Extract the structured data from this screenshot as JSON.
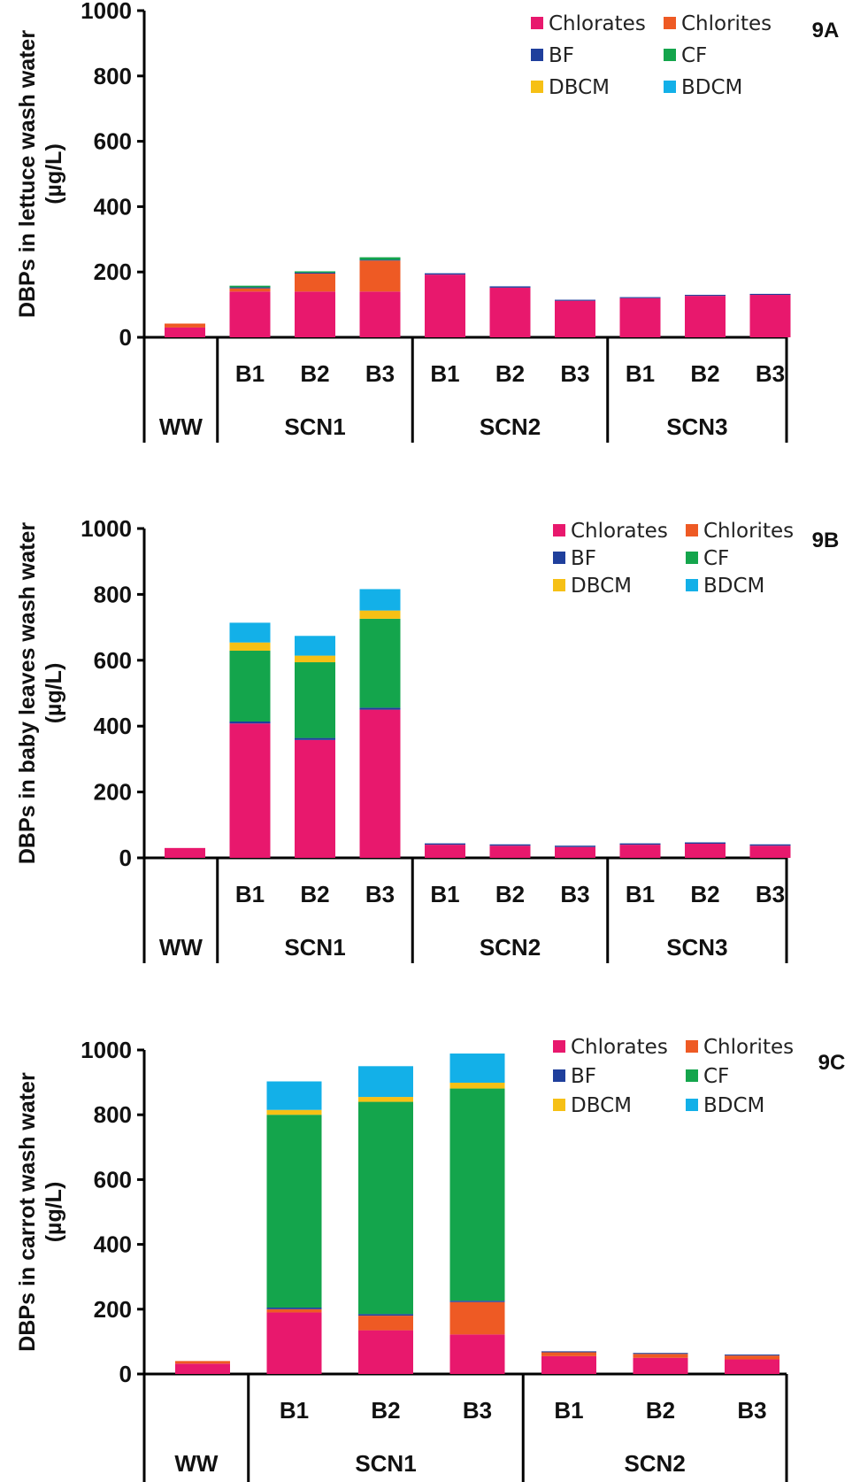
{
  "colors": {
    "Chlorates": "#e8186d",
    "Chlorites": "#ee5a24",
    "BF": "#1f3f9c",
    "CF": "#14a54c",
    "DBCM": "#f6c015",
    "BDCM": "#13b0e8"
  },
  "chart_data": [
    {
      "type": "bar",
      "stacked": true,
      "panel_label": "9A",
      "ylabel_line1": "DBPs  in lettuce wash water",
      "ylabel_line2": "(µg/L)",
      "ylim": [
        0,
        1000
      ],
      "yticks": [
        "0",
        "200",
        "400",
        "600",
        "800",
        "1000"
      ],
      "legend": [
        "Chlorates",
        "Chlorites",
        "BF",
        "CF",
        "DBCM",
        "BDCM"
      ],
      "categories": [
        "WW",
        "B1",
        "B2",
        "B3",
        "B1",
        "B2",
        "B3",
        "B1",
        "B2",
        "B3"
      ],
      "groups": [
        {
          "label": "WW",
          "count": 1
        },
        {
          "label": "SCN1",
          "count": 3
        },
        {
          "label": "SCN2",
          "count": 3
        },
        {
          "label": "SCN3",
          "count": 3
        }
      ],
      "series": [
        {
          "name": "Chlorates",
          "values": [
            30,
            140,
            140,
            140,
            192,
            152,
            112,
            120,
            127,
            130
          ]
        },
        {
          "name": "Chlorites",
          "values": [
            12,
            10,
            55,
            95,
            0,
            0,
            0,
            0,
            0,
            0
          ]
        },
        {
          "name": "BF",
          "values": [
            0,
            3,
            3,
            2,
            4,
            4,
            3,
            3,
            3,
            3
          ]
        },
        {
          "name": "CF",
          "values": [
            0,
            5,
            4,
            8,
            0,
            0,
            0,
            0,
            0,
            0
          ]
        },
        {
          "name": "DBCM",
          "values": [
            0,
            0,
            0,
            0,
            0,
            0,
            0,
            0,
            0,
            0
          ]
        },
        {
          "name": "BDCM",
          "values": [
            0,
            0,
            0,
            0,
            0,
            0,
            0,
            0,
            0,
            0
          ]
        }
      ]
    },
    {
      "type": "bar",
      "stacked": true,
      "panel_label": "9B",
      "ylabel_line1": "DBPs in baby leaves wash water",
      "ylabel_line2": "(µg/L)",
      "ylim": [
        0,
        1000
      ],
      "yticks": [
        "0",
        "200",
        "400",
        "600",
        "800",
        "1000"
      ],
      "legend": [
        "Chlorates",
        "Chlorites",
        "BF",
        "CF",
        "DBCM",
        "BDCM"
      ],
      "categories": [
        "WW",
        "B1",
        "B2",
        "B3",
        "B1",
        "B2",
        "B3",
        "B1",
        "B2",
        "B3"
      ],
      "groups": [
        {
          "label": "WW",
          "count": 1
        },
        {
          "label": "SCN1",
          "count": 3
        },
        {
          "label": "SCN2",
          "count": 3
        },
        {
          "label": "SCN3",
          "count": 3
        }
      ],
      "series": [
        {
          "name": "Chlorates",
          "values": [
            30,
            408,
            358,
            450,
            40,
            37,
            33,
            40,
            43,
            37
          ]
        },
        {
          "name": "Chlorites",
          "values": [
            0,
            0,
            0,
            0,
            0,
            0,
            0,
            0,
            0,
            0
          ]
        },
        {
          "name": "BF",
          "values": [
            0,
            6,
            6,
            6,
            4,
            4,
            4,
            4,
            4,
            4
          ]
        },
        {
          "name": "CF",
          "values": [
            0,
            215,
            230,
            270,
            0,
            0,
            0,
            0,
            0,
            0
          ]
        },
        {
          "name": "DBCM",
          "values": [
            0,
            25,
            20,
            25,
            0,
            0,
            0,
            0,
            0,
            0
          ]
        },
        {
          "name": "BDCM",
          "values": [
            0,
            60,
            60,
            65,
            0,
            0,
            0,
            0,
            0,
            0
          ]
        }
      ]
    },
    {
      "type": "bar",
      "stacked": true,
      "panel_label": "9C",
      "ylabel_line1": "DBPs in carrot wash water",
      "ylabel_line2": "(µg/L)",
      "ylim": [
        0,
        1000
      ],
      "yticks": [
        "0",
        "200",
        "400",
        "600",
        "800",
        "1000"
      ],
      "legend": [
        "Chlorates",
        "Chlorites",
        "BF",
        "CF",
        "DBCM",
        "BDCM"
      ],
      "categories": [
        "WW",
        "B1",
        "B2",
        "B3",
        "B1",
        "B2",
        "B3"
      ],
      "groups": [
        {
          "label": "WW",
          "count": 1
        },
        {
          "label": "SCN1",
          "count": 3
        },
        {
          "label": "SCN2",
          "count": 3
        }
      ],
      "series": [
        {
          "name": "Chlorates",
          "values": [
            32,
            190,
            135,
            122,
            55,
            50,
            45
          ]
        },
        {
          "name": "Chlorites",
          "values": [
            8,
            10,
            45,
            100,
            12,
            12,
            12
          ]
        },
        {
          "name": "BF",
          "values": [
            0,
            5,
            5,
            4,
            3,
            3,
            3
          ]
        },
        {
          "name": "CF",
          "values": [
            0,
            595,
            655,
            655,
            0,
            0,
            0
          ]
        },
        {
          "name": "DBCM",
          "values": [
            0,
            15,
            15,
            18,
            0,
            0,
            0
          ]
        },
        {
          "name": "BDCM",
          "values": [
            0,
            88,
            95,
            90,
            0,
            0,
            0
          ]
        }
      ]
    }
  ]
}
